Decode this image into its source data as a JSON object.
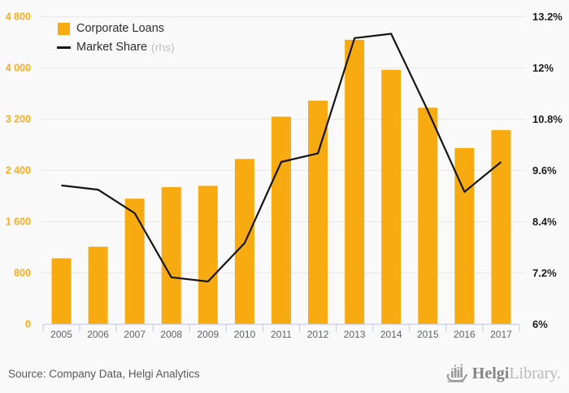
{
  "legend": {
    "series1": "Corporate Loans",
    "series2": "Market Share",
    "series2_suffix": "(rhs)"
  },
  "footer": {
    "source": "Source: Company Data, Helgi Analytics",
    "brand_bold": "Helgi",
    "brand_light": "Library."
  },
  "colors": {
    "background": "#f9f9f9",
    "bar": "#F8AB10",
    "line": "#151515",
    "left_axis_label": "#FBAD1F",
    "right_axis_label": "#1d1d1d",
    "x_axis_label": "#60626b",
    "grid": "#e9e9e9",
    "axis_line": "#c9cfe0",
    "legend_rhs": "#c2c2c2",
    "source_text": "#595959",
    "brand_dark": "#848484",
    "brand_light": "#b8b8b8",
    "ship_gray": "#9a9a9a"
  },
  "chart_data": {
    "type": "bar",
    "title": "",
    "xlabel": "",
    "ylabel": "",
    "categories": [
      "2005",
      "2006",
      "2007",
      "2008",
      "2009",
      "2010",
      "2011",
      "2012",
      "2013",
      "2014",
      "2015",
      "2016",
      "2017"
    ],
    "series": [
      {
        "name": "Corporate Loans",
        "type": "bar",
        "axis": "left",
        "values": [
          1030,
          1210,
          1960,
          2140,
          2160,
          2580,
          3240,
          3490,
          4440,
          3970,
          3380,
          2750,
          3030
        ]
      },
      {
        "name": "Market Share (rhs)",
        "type": "line",
        "axis": "right",
        "values": [
          9.25,
          9.15,
          8.6,
          7.1,
          7.0,
          7.9,
          9.8,
          10.0,
          12.7,
          12.8,
          11.0,
          9.1,
          9.8
        ]
      }
    ],
    "left_axis": {
      "range": [
        0,
        4800
      ],
      "ticks": [
        0,
        800,
        1600,
        2400,
        3200,
        4000,
        4800
      ],
      "labels": [
        "0",
        "800",
        "1 600",
        "2 400",
        "3 200",
        "4 000",
        "4 800"
      ]
    },
    "right_axis": {
      "range": [
        6,
        13.2
      ],
      "ticks": [
        6,
        7.2,
        8.4,
        9.6,
        10.8,
        12,
        13.2
      ],
      "labels": [
        "6%",
        "7.2%",
        "8.4%",
        "9.6%",
        "10.8%",
        "12%",
        "13.2%"
      ]
    },
    "grid": true,
    "legend_position": "top-left"
  }
}
